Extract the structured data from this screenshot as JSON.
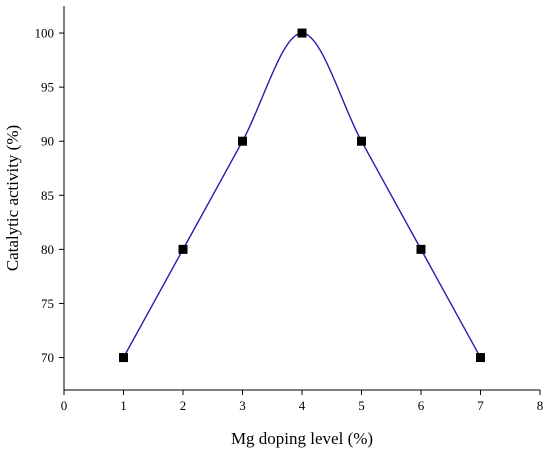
{
  "chart_data": {
    "type": "line",
    "title": "",
    "xlabel": "Mg doping level (%)",
    "ylabel": "Catalytic activity (%)",
    "xlim": [
      0,
      8
    ],
    "ylim": [
      67,
      102.5
    ],
    "xticks": [
      0,
      1,
      2,
      3,
      4,
      5,
      6,
      7,
      8
    ],
    "yticks": [
      70,
      75,
      80,
      85,
      90,
      95,
      100
    ],
    "grid": false,
    "legend": "none",
    "series": [
      {
        "x": [
          1,
          2,
          3,
          4,
          5,
          6,
          7
        ],
        "y": [
          70,
          80,
          90,
          100,
          90,
          80,
          70
        ],
        "line_color": "#1f1faa",
        "marker": "square",
        "marker_color": "#000000",
        "smooth": true
      }
    ]
  }
}
